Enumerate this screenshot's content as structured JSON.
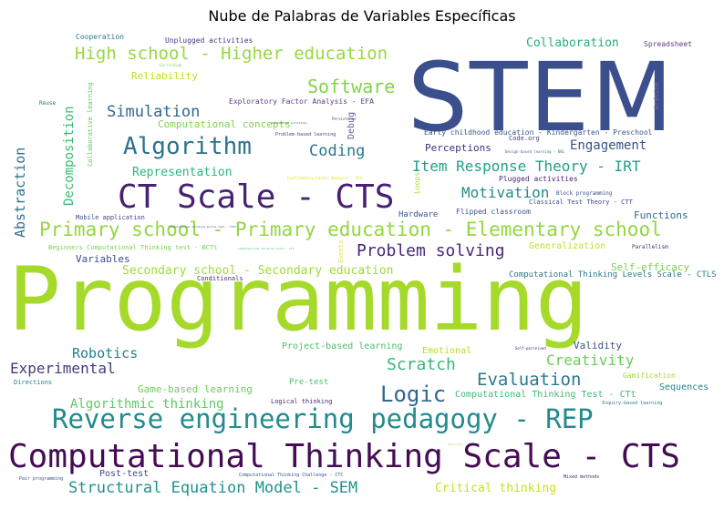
{
  "title": "Nube de Palabras de Variables Específicas",
  "words": [
    {
      "text": "STEM",
      "color": "#3b4f8c"
    },
    {
      "text": "Programming",
      "color": "#a5d92a"
    },
    {
      "text": "Computational Thinking Scale - CTS",
      "color": "#450c54"
    },
    {
      "text": "Reverse engineering pedagogy - REP",
      "color": "#238a8d"
    },
    {
      "text": "CT Scale - CTS",
      "color": "#482173"
    },
    {
      "text": "Algorithm",
      "color": "#2c728e"
    },
    {
      "text": "Primary school - Primary education - Elementary school",
      "color": "#92d741"
    },
    {
      "text": "High school - Higher education",
      "color": "#97d83e"
    },
    {
      "text": "Software",
      "color": "#84d44b"
    },
    {
      "text": "Logic",
      "color": "#31688e"
    },
    {
      "text": "Scratch",
      "color": "#35b779"
    },
    {
      "text": "Evaluation",
      "color": "#2a788e"
    },
    {
      "text": "Problem solving",
      "color": "#482677"
    },
    {
      "text": "Simulation",
      "color": "#31688e"
    },
    {
      "text": "Coding",
      "color": "#2a788e"
    },
    {
      "text": "Item Response Theory - IRT",
      "color": "#1fa187"
    },
    {
      "text": "Structural Equation Model - SEM",
      "color": "#20928c"
    },
    {
      "text": "Motivation",
      "color": "#238a8d"
    },
    {
      "text": "Experimental",
      "color": "#443a83"
    },
    {
      "text": "Robotics",
      "color": "#26828e"
    },
    {
      "text": "Creativity",
      "color": "#6ccd5a"
    },
    {
      "text": "Engagement",
      "color": "#3b528b"
    },
    {
      "text": "Abstraction",
      "color": "#2c728e"
    },
    {
      "text": "Decomposition",
      "color": "#3bbb75"
    },
    {
      "text": "Representation",
      "color": "#2fb47c"
    },
    {
      "text": "Collaboration",
      "color": "#28ae80"
    },
    {
      "text": "Algorithmic thinking",
      "color": "#5ec962"
    },
    {
      "text": "Secondary school - Secondary education",
      "color": "#a0da39"
    },
    {
      "text": "Critical thinking",
      "color": "#c8e020"
    },
    {
      "text": "Computational concepts",
      "color": "#7fd34e"
    },
    {
      "text": "Reliability",
      "color": "#bddf26"
    },
    {
      "text": "Variables",
      "color": "#3e4a89"
    },
    {
      "text": "Functions",
      "color": "#31688e"
    },
    {
      "text": "Perceptions",
      "color": "#472d7b"
    },
    {
      "text": "Game-based learning",
      "color": "#6ccd5a"
    },
    {
      "text": "Project-based learning",
      "color": "#4ac16d"
    },
    {
      "text": "Validity",
      "color": "#3b528b"
    },
    {
      "text": "Self-efficacy",
      "color": "#7ad151"
    },
    {
      "text": "Sequences",
      "color": "#26828e"
    },
    {
      "text": "Computational Thinking Test - CTt",
      "color": "#3dbc74"
    },
    {
      "text": "Emotional",
      "color": "#b5de2b"
    },
    {
      "text": "Generalization",
      "color": "#c2df23"
    },
    {
      "text": "Computational Thinking Levels Scale - CTLS",
      "color": "#2a788e"
    },
    {
      "text": "Post-test",
      "color": "#3e4989"
    },
    {
      "text": "Pre-test",
      "color": "#4ac16d"
    },
    {
      "text": "Gamification",
      "color": "#a2da37"
    },
    {
      "text": "Debug",
      "color": "#6a5d9a"
    },
    {
      "text": "Loops",
      "color": "#b0dd2f"
    },
    {
      "text": "Events",
      "color": "#e0e34e"
    },
    {
      "text": "Cooperation",
      "color": "#2a788e"
    },
    {
      "text": "Unplugged activities",
      "color": "#443983"
    },
    {
      "text": "Spreadsheet",
      "color": "#5c3c80"
    },
    {
      "text": "Arduino",
      "color": "#7a6fa8"
    },
    {
      "text": "Exploratory Factor Analysis - EFA",
      "color": "#5c3c80"
    },
    {
      "text": "Hardware",
      "color": "#39568c"
    },
    {
      "text": "Flipped classroom",
      "color": "#39568c"
    },
    {
      "text": "Plugged activities",
      "color": "#482576"
    },
    {
      "text": "Classical Test Theory - CTT",
      "color": "#3e4a89"
    },
    {
      "text": "Early childhood education - Kindergarten - Preschool",
      "color": "#39568c"
    },
    {
      "text": "Code.org",
      "color": "#443a83"
    },
    {
      "text": "Block programming",
      "color": "#3b528b"
    },
    {
      "text": "Mobile application",
      "color": "#3e4a89"
    },
    {
      "text": "Beginners Computational Thinking test - BCTt",
      "color": "#7ad151"
    },
    {
      "text": "Conditionals",
      "color": "#482777"
    },
    {
      "text": "Parallelism",
      "color": "#481f70"
    },
    {
      "text": "Directions",
      "color": "#26828e"
    },
    {
      "text": "Logical thinking",
      "color": "#482777"
    },
    {
      "text": "Inquiry-based learning",
      "color": "#2a788e"
    },
    {
      "text": "Computational Thinking Challenge - CTC",
      "color": "#3b528b"
    },
    {
      "text": "Mixed methods",
      "color": "#482576"
    },
    {
      "text": "Pair programming",
      "color": "#3b528b"
    },
    {
      "text": "Collaborative learning",
      "color": "#5ec962"
    },
    {
      "text": "Reuse",
      "color": "#2c728e"
    },
    {
      "text": "Problem-based learning",
      "color": "#414487"
    },
    {
      "text": "Persistence",
      "color": "#3e4a89"
    },
    {
      "text": "Confirmatory Factor Analysis - CFA",
      "color": "#dde318"
    },
    {
      "text": "Design-based learning - DBL",
      "color": "#4c6b8c"
    },
    {
      "text": "Computational thinking skills test - CTST",
      "color": "#414487"
    },
    {
      "text": "Computational Thinking Scale - CTS",
      "color": "#4ac16d"
    },
    {
      "text": "Self-perceived",
      "color": "#482576"
    },
    {
      "text": "Curriculum",
      "color": "#6ccd5a"
    },
    {
      "text": "Unconnected activities",
      "color": "#3b528b"
    },
    {
      "text": "Attitudes",
      "color": "#9fda3a"
    },
    {
      "text": "Gender",
      "color": "#3b528b"
    }
  ]
}
